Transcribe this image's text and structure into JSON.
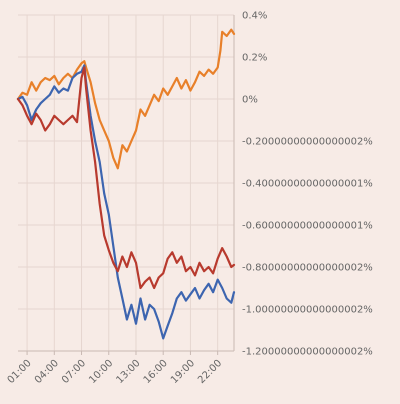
{
  "chart_data": {
    "type": "line",
    "title": "",
    "xlabel": "",
    "ylabel": "",
    "x_range_hours": [
      0.0,
      23.8
    ],
    "x_ticks": [
      1,
      4,
      7,
      10,
      13,
      16,
      19,
      22
    ],
    "x_tick_labels": [
      "01:00",
      "04:00",
      "07:00",
      "10:00",
      "13:00",
      "16:00",
      "19:00",
      "22:00"
    ],
    "ylim": [
      -1.2,
      0.4
    ],
    "y_ticks": [
      0.4,
      0.2,
      0,
      -0.2,
      -0.4,
      -0.6,
      -0.8,
      -1.0,
      -1.2
    ],
    "y_tick_labels": [
      "0.4%",
      "0.2%",
      "0%",
      "-0.20000000000000002%",
      "-0.40000000000000001%",
      "-0.60000000000000001%",
      "-0.80000000000000002%",
      "-1.00000000000000002%",
      "-1.20000000000000002%"
    ],
    "grid": true,
    "y_axis_side": "right",
    "series": [
      {
        "color": "#e8802a",
        "x": [
          0.0,
          0.5,
          1.0,
          1.5,
          2.0,
          2.5,
          3.0,
          3.5,
          4.0,
          4.5,
          5.0,
          5.5,
          6.0,
          6.5,
          7.0,
          7.3,
          7.5,
          8.0,
          8.5,
          9.0,
          9.5,
          10.0,
          10.5,
          11.0,
          11.5,
          12.0,
          12.5,
          13.0,
          13.5,
          14.0,
          14.5,
          15.0,
          15.5,
          16.0,
          16.5,
          17.0,
          17.5,
          18.0,
          18.5,
          19.0,
          19.5,
          20.0,
          20.5,
          21.0,
          21.5,
          22.0,
          22.3,
          22.5,
          23.0,
          23.5,
          23.8
        ],
        "y": [
          0.0,
          0.03,
          0.02,
          0.08,
          0.04,
          0.08,
          0.1,
          0.09,
          0.11,
          0.07,
          0.1,
          0.12,
          0.1,
          0.14,
          0.17,
          0.18,
          0.15,
          0.08,
          -0.02,
          -0.1,
          -0.15,
          -0.2,
          -0.28,
          -0.33,
          -0.22,
          -0.25,
          -0.2,
          -0.15,
          -0.05,
          -0.08,
          -0.03,
          0.02,
          -0.01,
          0.05,
          0.02,
          0.06,
          0.1,
          0.05,
          0.09,
          0.04,
          0.08,
          0.13,
          0.11,
          0.14,
          0.12,
          0.15,
          0.23,
          0.32,
          0.3,
          0.33,
          0.31
        ]
      },
      {
        "color": "#3d65b0",
        "x": [
          0.0,
          0.5,
          1.0,
          1.5,
          2.0,
          2.5,
          3.0,
          3.5,
          4.0,
          4.5,
          5.0,
          5.5,
          6.0,
          6.5,
          7.0,
          7.3,
          7.5,
          8.0,
          8.5,
          9.0,
          9.5,
          10.0,
          10.5,
          11.0,
          11.5,
          12.0,
          12.5,
          13.0,
          13.5,
          14.0,
          14.5,
          15.0,
          15.5,
          16.0,
          16.5,
          17.0,
          17.5,
          18.0,
          18.5,
          19.0,
          19.5,
          20.0,
          20.5,
          21.0,
          21.5,
          22.0,
          22.5,
          23.0,
          23.5,
          23.8
        ],
        "y": [
          0.0,
          0.01,
          -0.03,
          -0.1,
          -0.05,
          -0.02,
          0.0,
          0.02,
          0.06,
          0.03,
          0.05,
          0.04,
          0.1,
          0.12,
          0.13,
          0.16,
          0.08,
          -0.08,
          -0.2,
          -0.3,
          -0.45,
          -0.55,
          -0.7,
          -0.85,
          -0.95,
          -1.05,
          -0.98,
          -1.07,
          -0.95,
          -1.05,
          -0.98,
          -1.0,
          -1.06,
          -1.14,
          -1.08,
          -1.02,
          -0.95,
          -0.92,
          -0.96,
          -0.93,
          -0.9,
          -0.95,
          -0.91,
          -0.88,
          -0.92,
          -0.86,
          -0.9,
          -0.95,
          -0.97,
          -0.92
        ]
      },
      {
        "color": "#b83a2e",
        "x": [
          0.0,
          0.5,
          1.0,
          1.5,
          2.0,
          2.5,
          3.0,
          3.5,
          4.0,
          4.5,
          5.0,
          5.5,
          6.0,
          6.5,
          7.0,
          7.3,
          7.5,
          8.0,
          8.5,
          9.0,
          9.5,
          10.0,
          10.5,
          11.0,
          11.5,
          12.0,
          12.5,
          13.0,
          13.5,
          14.0,
          14.5,
          15.0,
          15.5,
          16.0,
          16.5,
          17.0,
          17.5,
          18.0,
          18.5,
          19.0,
          19.5,
          20.0,
          20.5,
          21.0,
          21.5,
          22.0,
          22.5,
          23.0,
          23.5,
          23.8
        ],
        "y": [
          0.0,
          -0.03,
          -0.08,
          -0.12,
          -0.07,
          -0.1,
          -0.15,
          -0.12,
          -0.08,
          -0.1,
          -0.12,
          -0.1,
          -0.08,
          -0.11,
          0.1,
          0.15,
          0.05,
          -0.15,
          -0.3,
          -0.5,
          -0.65,
          -0.72,
          -0.78,
          -0.82,
          -0.75,
          -0.8,
          -0.73,
          -0.78,
          -0.9,
          -0.87,
          -0.85,
          -0.9,
          -0.85,
          -0.83,
          -0.76,
          -0.73,
          -0.78,
          -0.75,
          -0.82,
          -0.8,
          -0.84,
          -0.78,
          -0.82,
          -0.8,
          -0.83,
          -0.76,
          -0.71,
          -0.75,
          -0.8,
          -0.79
        ]
      }
    ]
  }
}
